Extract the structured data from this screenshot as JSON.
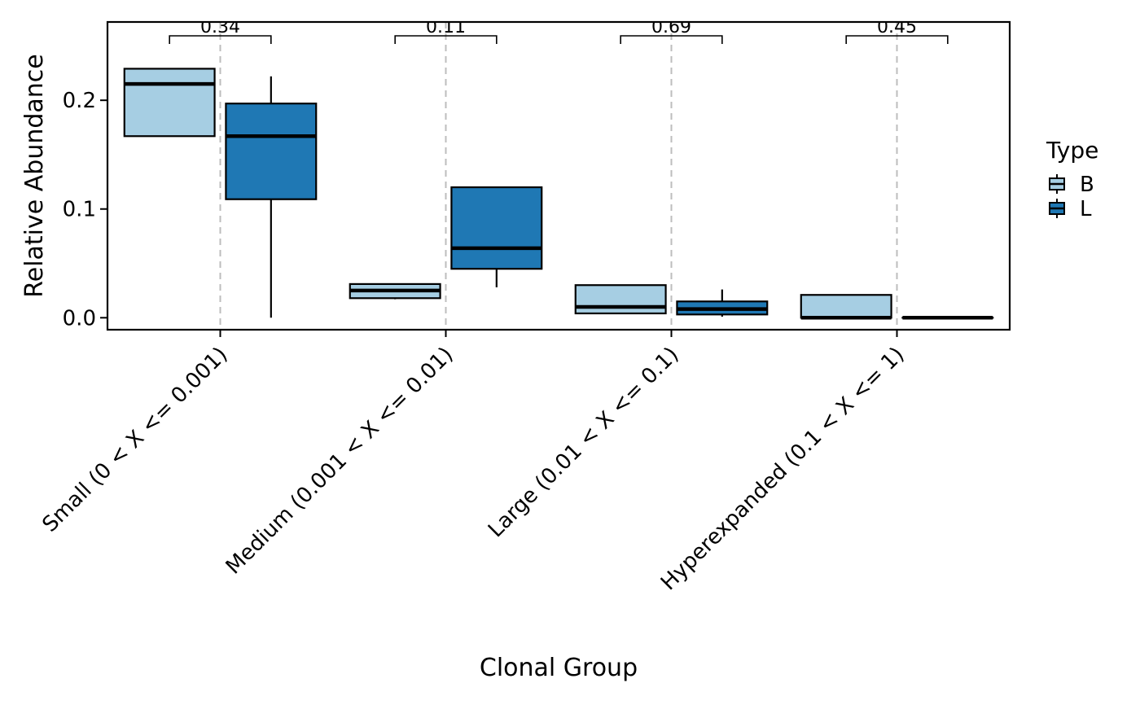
{
  "chart_data": {
    "type": "boxplot",
    "xlabel": "Clonal Group",
    "ylabel": "Relative Abundance",
    "ylim": [
      -0.011,
      0.272
    ],
    "yticks": [
      0.0,
      0.1,
      0.2
    ],
    "ytick_labels": [
      "0.0",
      "0.1",
      "0.2"
    ],
    "categories": [
      "Small (0 < X <= 0.001)",
      "Medium (0.001 < X <= 0.01)",
      "Large (0.01 < X <= 0.1)",
      "Hyperexpanded (0.1 < X <= 1)"
    ],
    "legend": {
      "title": "Type",
      "position": "right"
    },
    "series": [
      {
        "name": "B",
        "color": "#a6cee3",
        "boxes": [
          {
            "whisker_low": 0.167,
            "q1": 0.167,
            "median": 0.215,
            "q3": 0.229,
            "whisker_high": 0.229
          },
          {
            "whisker_low": 0.017,
            "q1": 0.018,
            "median": 0.025,
            "q3": 0.031,
            "whisker_high": 0.031
          },
          {
            "whisker_low": 0.004,
            "q1": 0.004,
            "median": 0.01,
            "q3": 0.03,
            "whisker_high": 0.03
          },
          {
            "whisker_low": 0.0,
            "q1": 0.0,
            "median": 0.0,
            "q3": 0.021,
            "whisker_high": 0.021
          }
        ]
      },
      {
        "name": "L",
        "color": "#1f78b4",
        "boxes": [
          {
            "whisker_low": 0.0,
            "q1": 0.109,
            "median": 0.167,
            "q3": 0.197,
            "whisker_high": 0.222
          },
          {
            "whisker_low": 0.028,
            "q1": 0.045,
            "median": 0.064,
            "q3": 0.12,
            "whisker_high": 0.12
          },
          {
            "whisker_low": 0.001,
            "q1": 0.003,
            "median": 0.008,
            "q3": 0.015,
            "whisker_high": 0.026
          },
          {
            "whisker_low": 0.0,
            "q1": 0.0,
            "median": 0.0,
            "q3": 0.0,
            "whisker_high": 0.0
          }
        ]
      }
    ],
    "annotations": [
      "0.34",
      "0.11",
      "0.69",
      "0.45"
    ],
    "grid": {
      "vertical_dashed_at_categories": true,
      "horizontal": false
    }
  }
}
